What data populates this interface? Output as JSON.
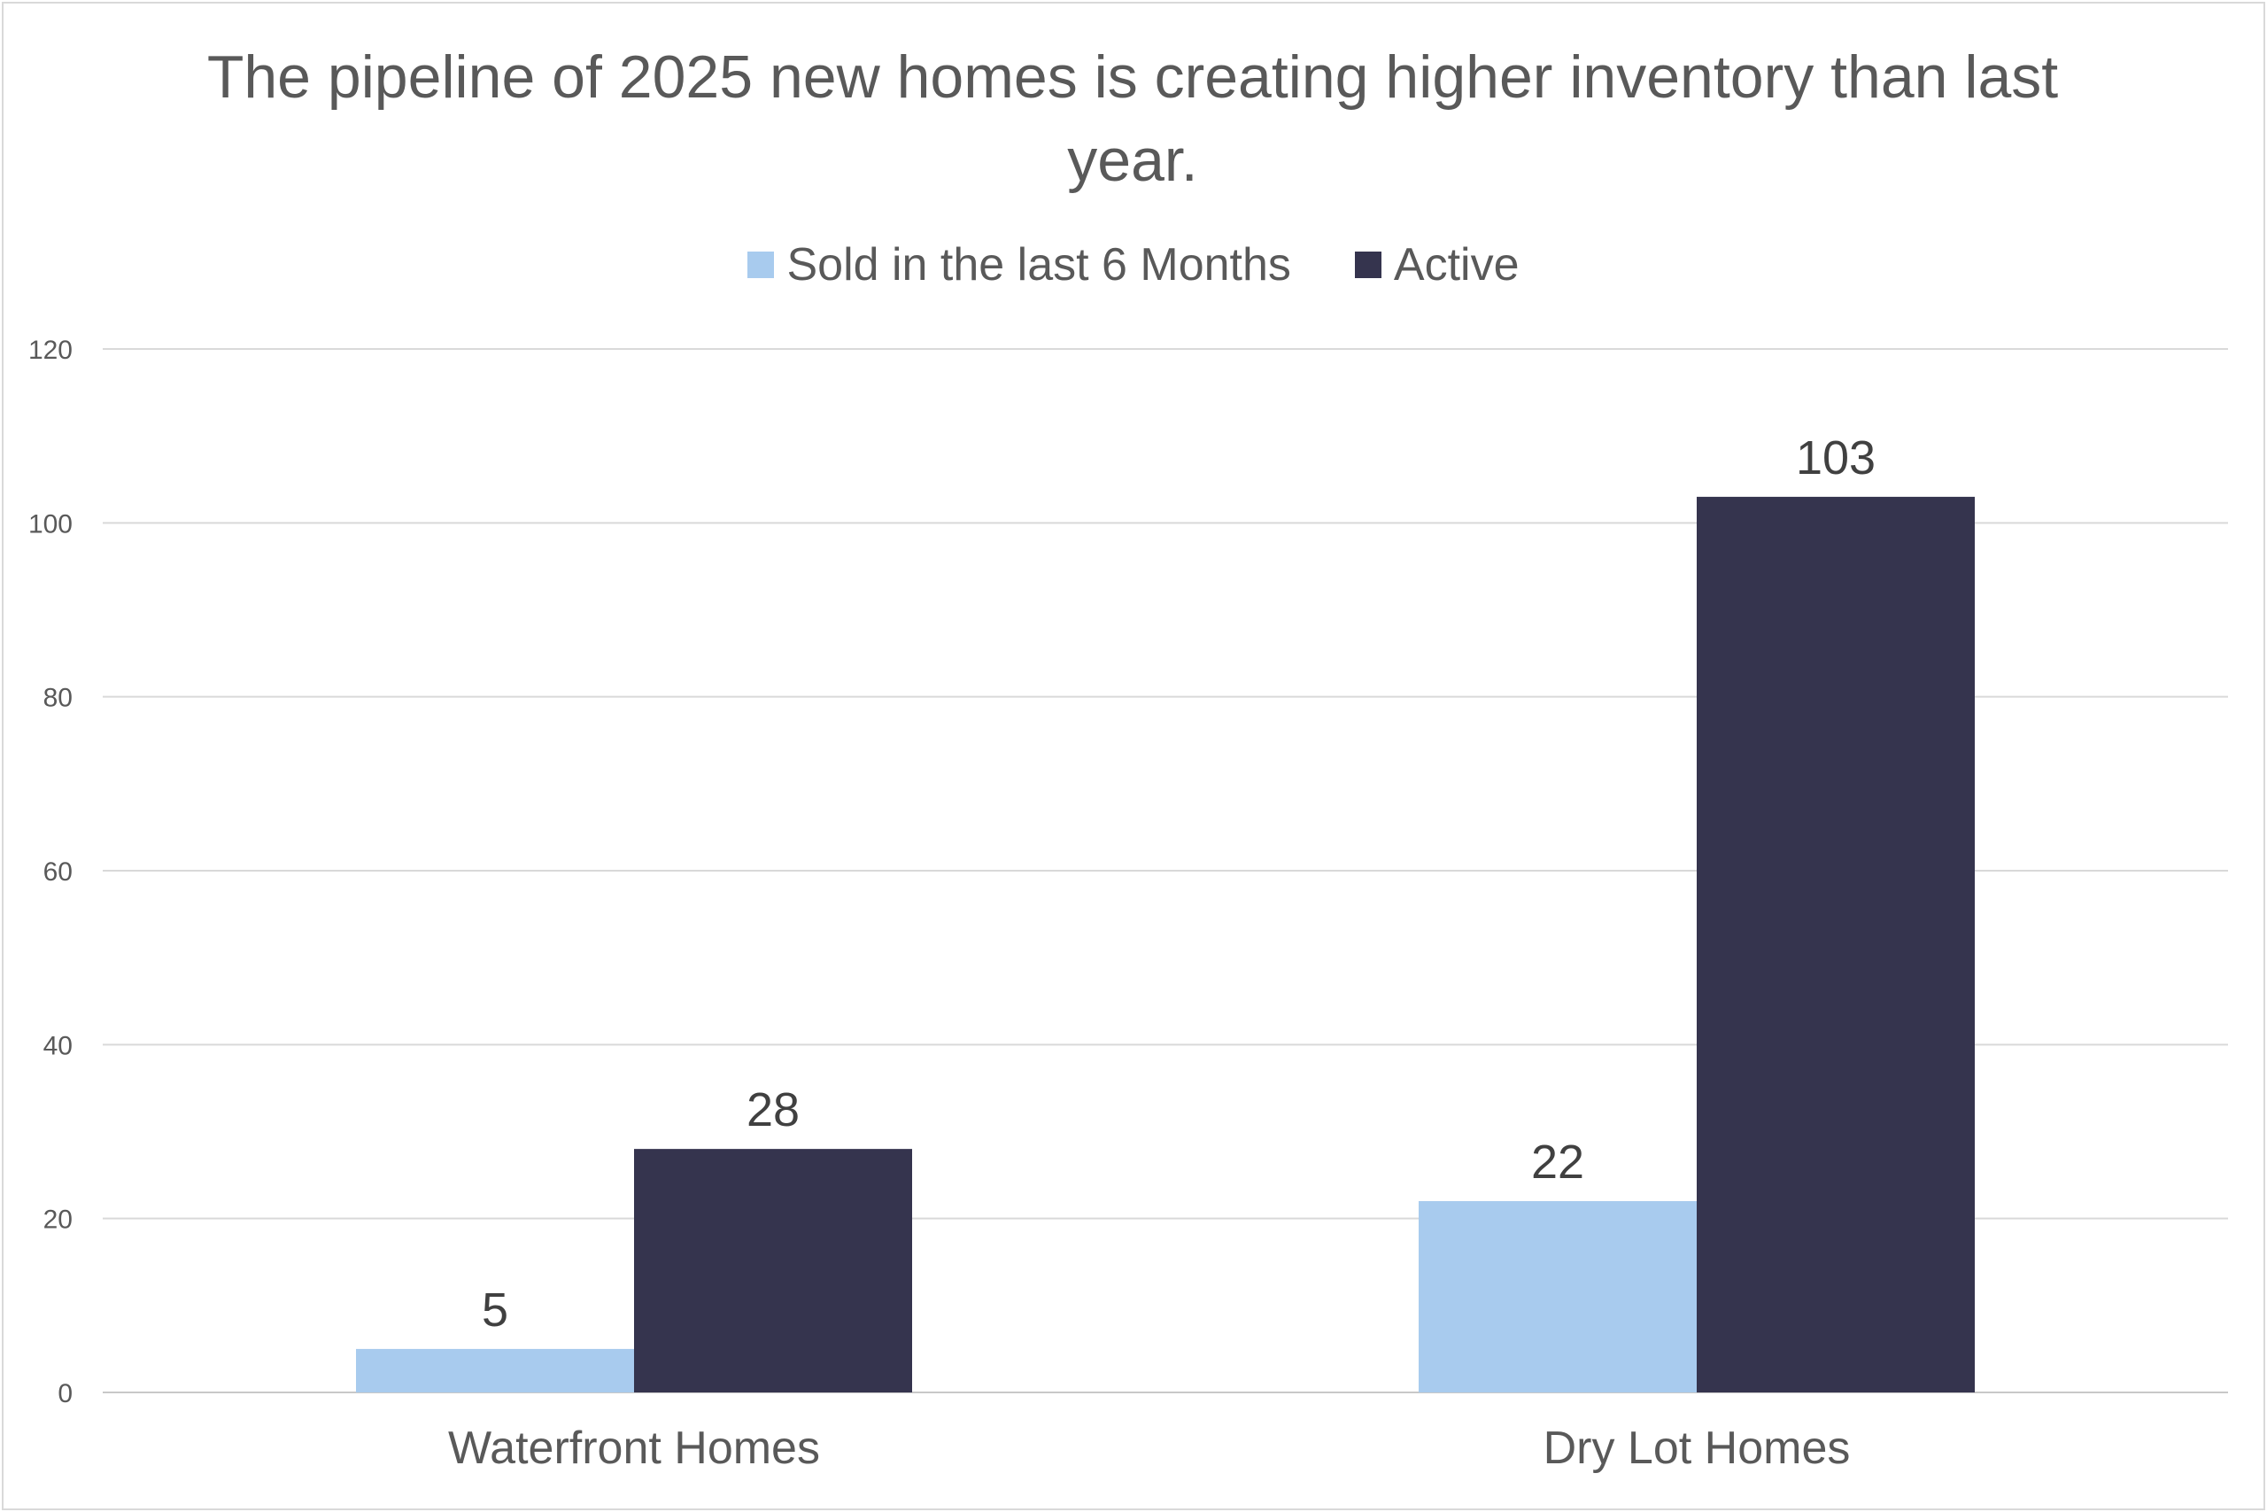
{
  "chart_data": {
    "type": "bar",
    "title": "The pipeline of 2025 new homes is creating higher inventory than last year.",
    "categories": [
      "Waterfront Homes",
      "Dry Lot Homes"
    ],
    "series": [
      {
        "name": "Sold in the last 6 Months",
        "values": [
          5,
          22
        ],
        "color": "#a8cbee"
      },
      {
        "name": "Active",
        "values": [
          28,
          103
        ],
        "color": "#35344e"
      }
    ],
    "yticks": [
      "0",
      "20",
      "40",
      "60",
      "80",
      "100",
      "120"
    ],
    "ylim": [
      0,
      120
    ],
    "xlabel": "",
    "ylabel": "",
    "grid": true,
    "legend_position": "top",
    "data_labels": true
  }
}
